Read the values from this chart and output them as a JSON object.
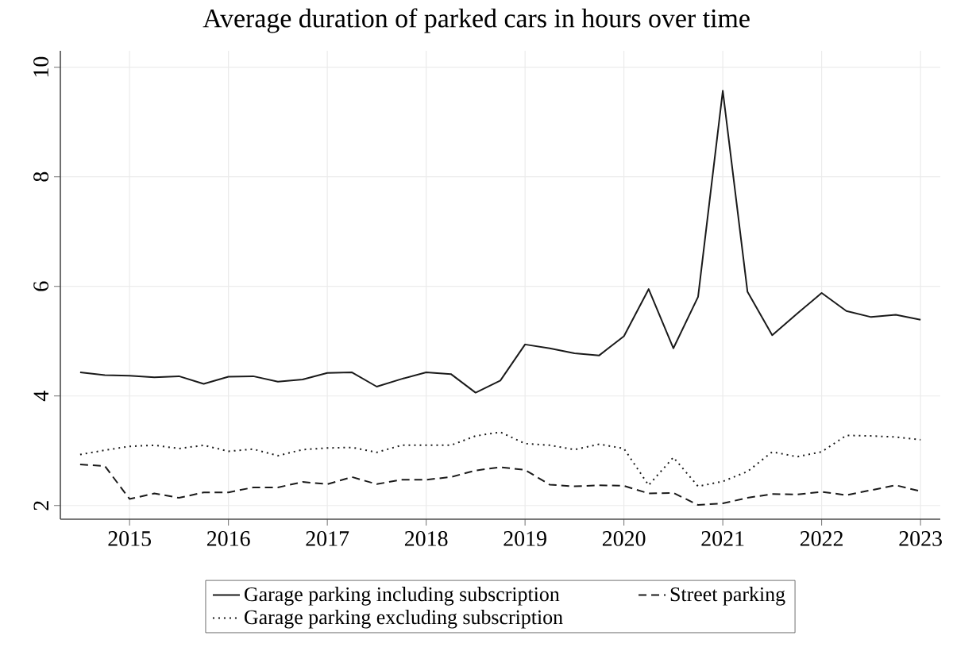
{
  "chart_data": {
    "type": "line",
    "title": "Average duration of parked cars in hours over time",
    "x": [
      2014.5,
      2014.75,
      2015,
      2015.25,
      2015.5,
      2015.75,
      2016,
      2016.25,
      2016.5,
      2016.75,
      2017,
      2017.25,
      2017.5,
      2017.75,
      2018,
      2018.25,
      2018.5,
      2018.75,
      2019,
      2019.25,
      2019.5,
      2019.75,
      2020,
      2020.25,
      2020.5,
      2020.75,
      2021,
      2021.25,
      2021.5,
      2021.75,
      2022,
      2022.25,
      2022.5,
      2022.75,
      2023
    ],
    "series": [
      {
        "name": "Garage parking including subscription",
        "color": "#1a1a1a",
        "line_style": "solid",
        "values": [
          4.43,
          4.38,
          4.37,
          4.34,
          4.36,
          4.22,
          4.35,
          4.36,
          4.26,
          4.3,
          4.42,
          4.43,
          4.17,
          4.31,
          4.43,
          4.4,
          4.06,
          4.28,
          4.94,
          4.87,
          4.78,
          4.74,
          5.09,
          5.95,
          4.87,
          5.81,
          9.57,
          5.9,
          5.11,
          5.5,
          5.88,
          5.55,
          5.44,
          5.48,
          5.39
        ]
      },
      {
        "name": "Street parking",
        "color": "#1a1a1a",
        "line_style": "dashed",
        "values": [
          2.75,
          2.72,
          2.12,
          2.22,
          2.14,
          2.24,
          2.24,
          2.33,
          2.33,
          2.43,
          2.39,
          2.52,
          2.39,
          2.47,
          2.47,
          2.52,
          2.64,
          2.7,
          2.65,
          2.38,
          2.35,
          2.37,
          2.36,
          2.22,
          2.23,
          2.01,
          2.04,
          2.14,
          2.21,
          2.2,
          2.25,
          2.19,
          2.28,
          2.37,
          2.26
        ]
      },
      {
        "name": "Garage parking excluding subscription",
        "color": "#1a1a1a",
        "line_style": "dotted",
        "values": [
          2.93,
          3.01,
          3.08,
          3.1,
          3.04,
          3.1,
          2.99,
          3.03,
          2.91,
          3.02,
          3.05,
          3.06,
          2.97,
          3.1,
          3.1,
          3.1,
          3.27,
          3.34,
          3.13,
          3.1,
          3.02,
          3.12,
          3.04,
          2.37,
          2.88,
          2.35,
          2.44,
          2.62,
          2.98,
          2.89,
          2.98,
          3.28,
          3.27,
          3.25,
          3.2
        ]
      }
    ],
    "xlim": [
      2014.3,
      2023.2
    ],
    "ylim": [
      1.75,
      10.3
    ],
    "xticks": [
      2015,
      2016,
      2017,
      2018,
      2019,
      2020,
      2021,
      2022,
      2023
    ],
    "yticks": [
      2,
      4,
      6,
      8,
      10
    ],
    "grid": true,
    "legend": "bottom"
  }
}
